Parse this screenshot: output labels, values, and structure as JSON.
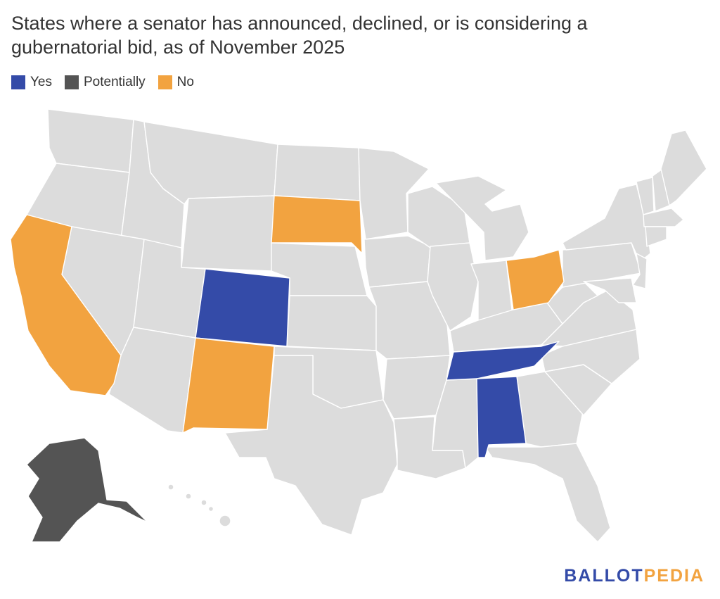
{
  "title": "States where a senator has announced, declined, or is considering a gubernatorial bid, as of November 2025",
  "legend": [
    {
      "label": "Yes",
      "color": "#344ba8"
    },
    {
      "label": "Potentially",
      "color": "#545454"
    },
    {
      "label": "No",
      "color": "#f2a340"
    }
  ],
  "colors": {
    "default": "#dcdcdc",
    "Yes": "#344ba8",
    "Potentially": "#545454",
    "No": "#f2a340",
    "logo_ballot": "#344ba8",
    "logo_pedia": "#f2a340"
  },
  "states": {
    "Colorado": "Yes",
    "Tennessee": "Yes",
    "Alabama": "Yes",
    "Alaska": "Potentially",
    "California": "No",
    "South Dakota": "No",
    "New Mexico": "No",
    "Ohio": "No"
  },
  "logo": {
    "part1": "BALLOT",
    "part2": "PEDIA"
  }
}
